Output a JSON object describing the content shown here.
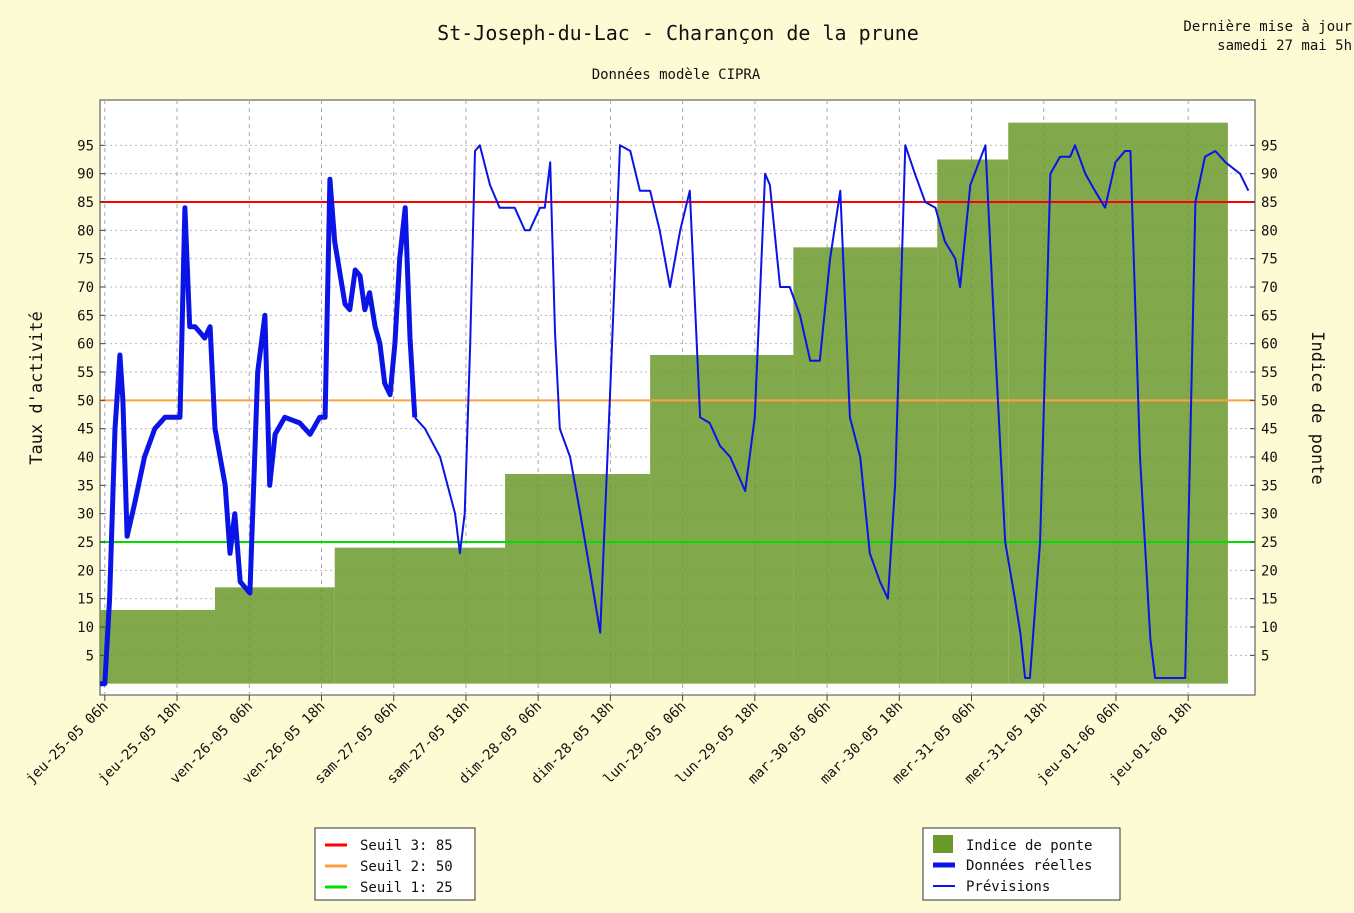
{
  "chart_data": {
    "type": "line",
    "title": "St-Joseph-du-Lac - Charançon de la prune",
    "subtitle": "Données modèle CIPRA",
    "update_lines": [
      "Dernière mise à jour",
      "samedi 27 mai 5h"
    ],
    "y_label": "Taux d'activité",
    "y2_label": "Indice de ponte",
    "xlim": [
      5.2,
      197.1
    ],
    "xticks": [
      {
        "value": 6,
        "label": "jeu-25-05 06h"
      },
      {
        "value": 18,
        "label": "jeu-25-05 18h"
      },
      {
        "value": 30,
        "label": "ven-26-05 06h"
      },
      {
        "value": 42,
        "label": "ven-26-05 18h"
      },
      {
        "value": 54,
        "label": "sam-27-05 06h"
      },
      {
        "value": 66,
        "label": "sam-27-05 18h"
      },
      {
        "value": 78,
        "label": "dim-28-05 06h"
      },
      {
        "value": 90,
        "label": "dim-28-05 18h"
      },
      {
        "value": 102,
        "label": "lun-29-05 06h"
      },
      {
        "value": 114,
        "label": "lun-29-05 18h"
      },
      {
        "value": 126,
        "label": "mar-30-05 06h"
      },
      {
        "value": 138,
        "label": "mar-30-05 18h"
      },
      {
        "value": 150,
        "label": "mer-31-05 06h"
      },
      {
        "value": 162,
        "label": "mer-31-05 18h"
      },
      {
        "value": 174,
        "label": "jeu-01-06 06h"
      },
      {
        "value": 186,
        "label": "jeu-01-06 18h"
      }
    ],
    "ylim": [
      -2,
      103
    ],
    "yticks": [
      5,
      10,
      15,
      20,
      25,
      30,
      35,
      40,
      45,
      50,
      55,
      60,
      65,
      70,
      75,
      80,
      85,
      90,
      95
    ],
    "y2lim": [
      -2,
      103
    ],
    "y2ticks": [
      5,
      10,
      15,
      20,
      25,
      30,
      35,
      40,
      45,
      50,
      55,
      60,
      65,
      70,
      75,
      80,
      85,
      90,
      95
    ],
    "grid": true,
    "ponte": {
      "name": "Indice de ponte",
      "color": "#6b9a2c",
      "bins": [
        5.2,
        24.3,
        44.2,
        72.5,
        96.6,
        120.4,
        144.3,
        156.1,
        192.6
      ],
      "values": [
        13,
        17,
        24,
        37,
        58,
        77,
        92.5,
        99
      ]
    },
    "series": [
      {
        "name": "Données réelles",
        "color": "#0a14e6",
        "width": 5,
        "x": [
          5.2,
          6,
          6.8,
          7.7,
          8.5,
          9,
          9.7,
          11,
          12.6,
          14.3,
          16,
          17.6,
          18.5,
          19.3,
          20.1,
          21,
          21.8,
          22.6,
          23.5,
          24.3,
          26,
          26.8,
          27.6,
          28.5,
          30.1,
          31.4,
          32.6,
          33.4,
          34.3,
          35.9,
          38.4,
          40.1,
          41.7,
          42.6,
          43.4,
          44.2,
          45.9,
          46.7,
          47.6,
          48.4,
          49.2,
          50,
          50.9,
          51.7,
          52.5,
          53.4,
          54.2,
          55,
          55.9,
          56.7,
          57.5
        ],
        "values": [
          0,
          0,
          15,
          45,
          58,
          50,
          26,
          32,
          40,
          45,
          47,
          47,
          47,
          84,
          63,
          63,
          62,
          61,
          63,
          45,
          35,
          23,
          30,
          18,
          16,
          55,
          65,
          35,
          44,
          47,
          46,
          44,
          47,
          47,
          89,
          78,
          67,
          66,
          73,
          72,
          66,
          69,
          63,
          60,
          53,
          51,
          60,
          75,
          84,
          61,
          47
        ]
      },
      {
        "name": "Prévisions",
        "color": "#0a14e6",
        "width": 2,
        "x": [
          57.5,
          59.2,
          61.7,
          64.2,
          65,
          65.8,
          66.7,
          67.5,
          68.3,
          70,
          71.6,
          74.1,
          75.8,
          76.6,
          78.3,
          79.1,
          80,
          80.8,
          81.6,
          83.3,
          85,
          86.6,
          88.3,
          89.9,
          91.6,
          93.3,
          94.9,
          96.6,
          98.2,
          99.9,
          101.6,
          103.2,
          104.9,
          106.5,
          108.2,
          109.9,
          112.4,
          114,
          115.7,
          116.5,
          118.2,
          119.8,
          121.5,
          123.2,
          124.8,
          126.5,
          128.2,
          129.8,
          131.5,
          133.1,
          134.8,
          136.1,
          137.3,
          139,
          140.6,
          142.3,
          144,
          145.6,
          147.3,
          148.1,
          149.8,
          152.3,
          153.9,
          155.6,
          157.2,
          158.1,
          158.9,
          159.7,
          161.4,
          163.1,
          164.7,
          166.4,
          167.2,
          168.9,
          170.5,
          172.2,
          173.9,
          175.5,
          176.4,
          178,
          179.7,
          180.5,
          185.5,
          187.2,
          188.8,
          190.5,
          192.2,
          194.6,
          196
        ],
        "values": [
          47,
          45,
          40,
          30,
          23,
          30,
          60,
          94,
          95,
          88,
          84,
          84,
          80,
          80,
          84,
          84,
          92,
          62,
          45,
          40,
          30,
          20,
          9,
          50,
          95,
          94,
          87,
          87,
          80,
          70,
          80,
          87,
          47,
          46,
          42,
          40,
          34,
          47,
          90,
          88,
          70,
          70,
          65,
          57,
          57,
          75,
          87,
          47,
          40,
          23,
          18,
          15,
          35,
          95,
          90,
          85,
          84,
          78,
          75,
          70,
          88,
          95,
          60,
          25,
          15,
          9,
          1,
          1,
          25,
          90,
          93,
          93,
          95,
          90,
          87,
          84,
          92,
          94,
          94,
          40,
          8,
          1,
          1,
          85,
          93,
          94,
          92,
          90,
          87
        ]
      }
    ],
    "thresholds": [
      {
        "name": "Seuil 3: 85",
        "value": 85,
        "color": "#ff0000"
      },
      {
        "name": "Seuil 2: 50",
        "value": 50,
        "color": "#ffa040"
      },
      {
        "name": "Seuil 1: 25",
        "value": 25,
        "color": "#00e000"
      }
    ]
  }
}
